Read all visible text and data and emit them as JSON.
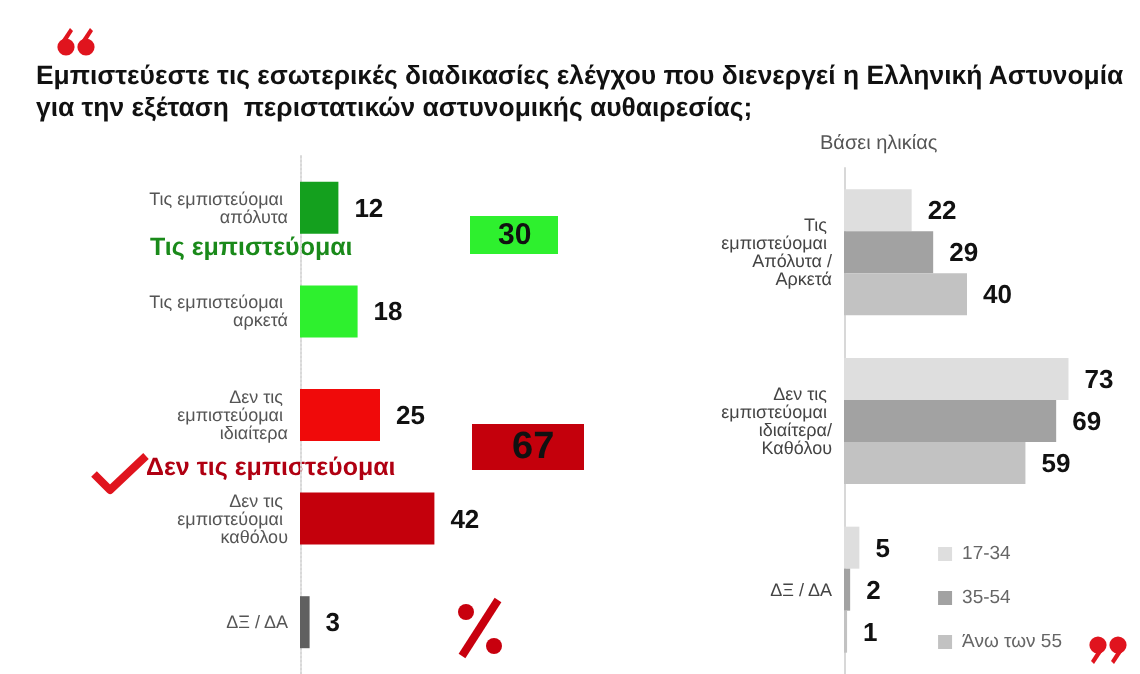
{
  "chart_data": [
    {
      "type": "bar",
      "orientation": "horizontal",
      "title": "Εμπιστεύεστε τις εσωτερικές διαδικασίες ελέγχου που διενεργεί η Ελληνική Αστυνομία για την εξέταση  περιστατικών αστυνομικής αυθαιρεσίας;",
      "categories": [
        "Τις εμπιστεύομαι απόλυτα",
        "Τις εμπιστεύομαι αρκετά",
        "Δεν τις εμπιστεύομαι ιδιαίτερα",
        "Δεν τις εμπιστεύομαι καθόλου",
        "ΔΞ / ΔΑ"
      ],
      "values": [
        12,
        18,
        25,
        42,
        3
      ],
      "colors": [
        "#14a01e",
        "#2ef02e",
        "#f00a0a",
        "#c4000c",
        "#606060"
      ],
      "data_labels": true,
      "annotations": [
        "Τις εμπιστεύομαι",
        "30",
        "Δεν τις εμπιστεύομαι",
        "67"
      ],
      "grid": false,
      "legend": false
    },
    {
      "type": "bar",
      "orientation": "horizontal",
      "title": "Βάσει ηλικίας",
      "categories": [
        "Τις εμπιστεύομαι Απόλυτα /Αρκετά",
        "Δεν τις εμπιστεύομαι ιδιαίτερα/Καθόλου",
        "ΔΞ / ΔΑ"
      ],
      "series": [
        {
          "name": "17-34",
          "color": "#dedede",
          "values": [
            22,
            73,
            5
          ]
        },
        {
          "name": "35-54",
          "color": "#a2a2a2",
          "values": [
            29,
            69,
            2
          ]
        },
        {
          "name": "Άνω των 55",
          "color": "#c2c2c2",
          "values": [
            40,
            59,
            1
          ]
        }
      ],
      "data_labels": true,
      "grid": false,
      "legend": "bottom right"
    }
  ]
}
